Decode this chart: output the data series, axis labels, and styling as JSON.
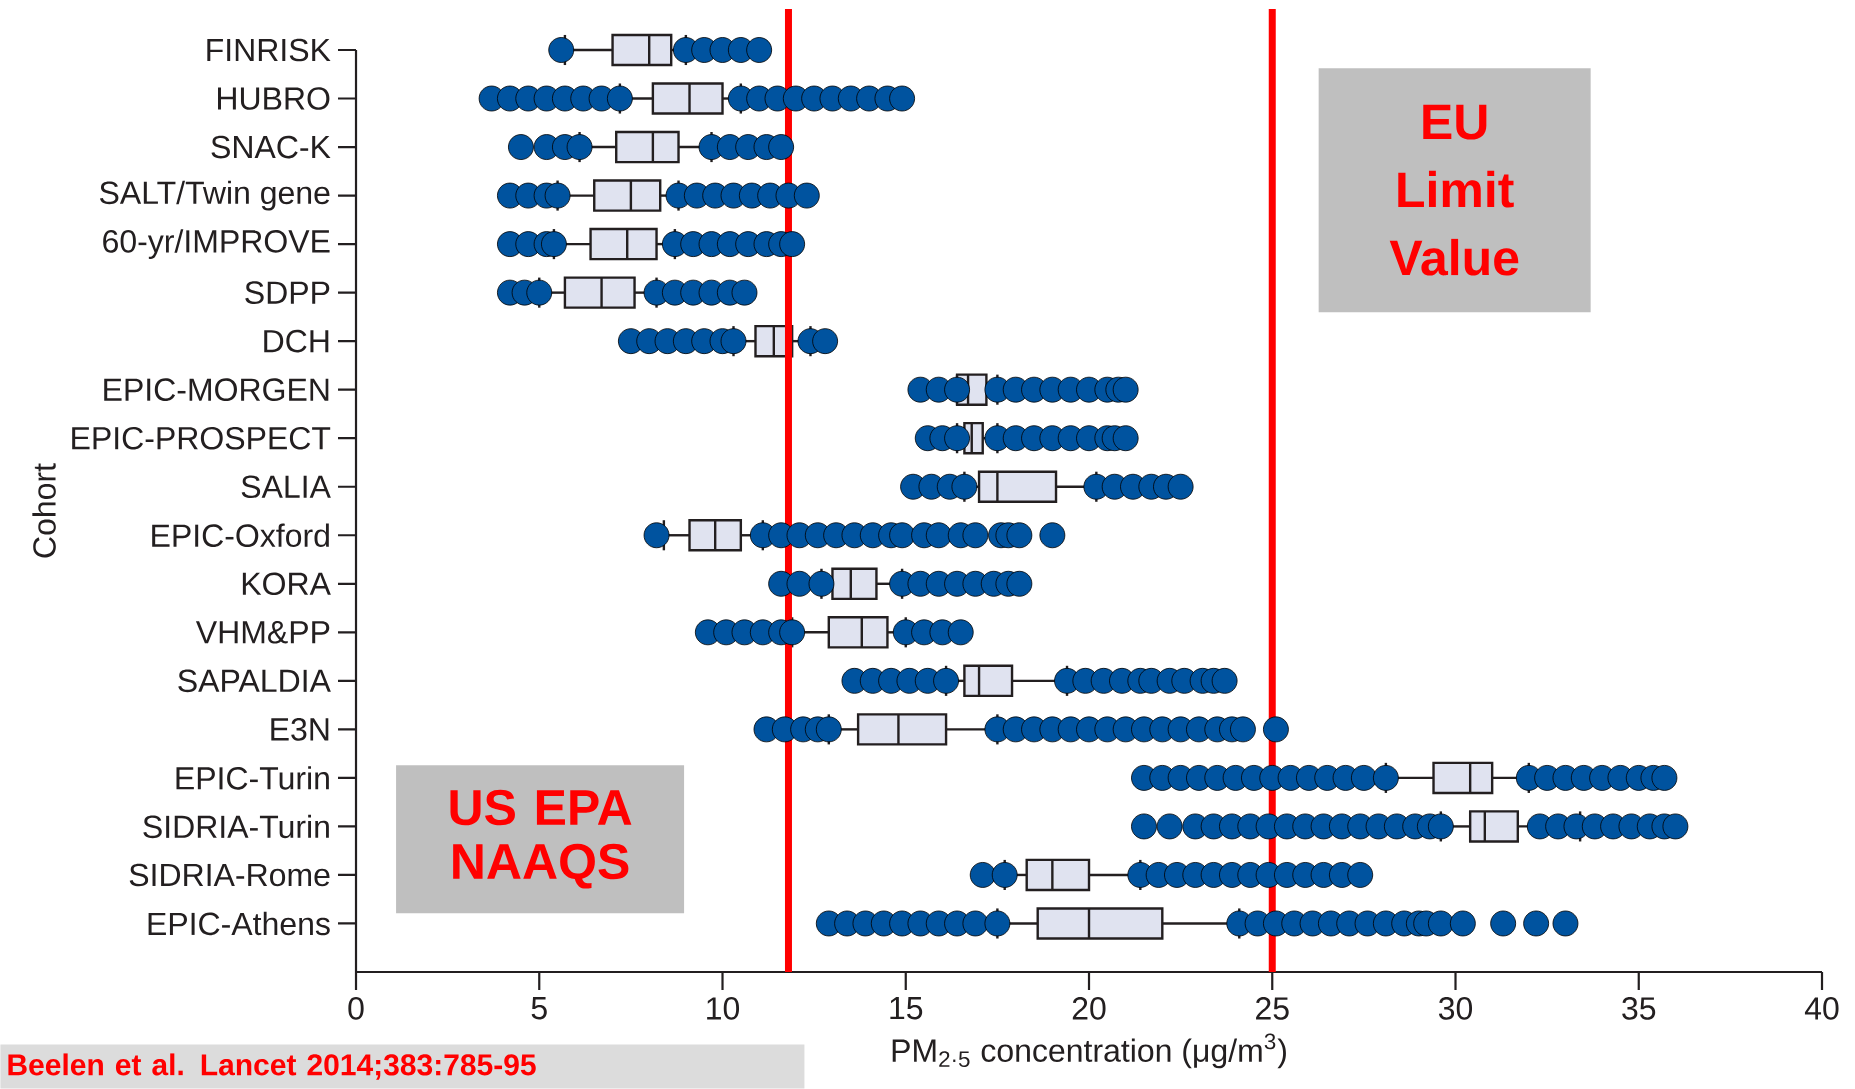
{
  "chart_data": {
    "type": "box",
    "orientation": "horizontal",
    "color": "#e0e3f0",
    "categories": [
      "FINRISK",
      "HUBRO",
      "SNAC-K",
      "SALT/Twin gene",
      "60-yr/IMPROVE",
      "SDPP",
      "DCH",
      "EPIC-MORGEN",
      "EPIC-PROSPECT",
      "SALIA",
      "EPIC-Oxford",
      "KORA",
      "VHM&PP",
      "SAPALDIA",
      "E3N",
      "EPIC-Turin",
      "SIDRIA-Turin",
      "SIDRIA-Rome",
      "EPIC-Athens"
    ],
    "boxes": [
      {
        "low": 5.7,
        "q1": 7.0,
        "median": 8.0,
        "q3": 8.6,
        "high": 9.0,
        "outliers": [
          5.6,
          9.0,
          9.5,
          10.0,
          10.5,
          11.0
        ]
      },
      {
        "low": 7.2,
        "q1": 8.1,
        "median": 9.1,
        "q3": 10.0,
        "high": 10.5,
        "outliers": [
          3.7,
          4.2,
          4.7,
          5.2,
          5.7,
          6.2,
          6.7,
          7.2,
          10.5,
          11.0,
          11.5,
          12.0,
          12.5,
          13.0,
          13.5,
          14.0,
          14.5,
          14.9
        ]
      },
      {
        "low": 6.1,
        "q1": 7.1,
        "median": 8.1,
        "q3": 8.8,
        "high": 9.7,
        "outliers": [
          4.5,
          5.2,
          5.7,
          6.1,
          9.7,
          10.2,
          10.7,
          11.2,
          11.6
        ]
      },
      {
        "low": 5.5,
        "q1": 6.5,
        "median": 7.5,
        "q3": 8.3,
        "high": 8.8,
        "outliers": [
          4.2,
          4.7,
          5.2,
          5.5,
          8.8,
          9.3,
          9.8,
          10.3,
          10.8,
          11.3,
          11.8,
          12.3
        ]
      },
      {
        "low": 5.4,
        "q1": 6.4,
        "median": 7.4,
        "q3": 8.2,
        "high": 8.7,
        "outliers": [
          4.2,
          4.7,
          5.2,
          5.4,
          8.7,
          9.2,
          9.7,
          10.2,
          10.7,
          11.2,
          11.6,
          11.9
        ]
      },
      {
        "low": 5.0,
        "q1": 5.7,
        "median": 6.7,
        "q3": 7.6,
        "high": 8.2,
        "outliers": [
          4.2,
          4.6,
          5.0,
          8.2,
          8.7,
          9.2,
          9.7,
          10.2,
          10.6
        ]
      },
      {
        "low": 10.3,
        "q1": 10.9,
        "median": 11.4,
        "q3": 11.9,
        "high": 12.4,
        "outliers": [
          7.5,
          8.0,
          8.5,
          9.0,
          9.5,
          10.0,
          10.3,
          12.4,
          12.8
        ]
      },
      {
        "low": 16.4,
        "q1": 16.4,
        "median": 16.7,
        "q3": 17.2,
        "high": 17.5,
        "outliers": [
          15.4,
          15.9,
          16.4,
          17.5,
          18.0,
          18.5,
          19.0,
          19.5,
          20.0,
          20.5,
          20.8,
          21.0
        ]
      },
      {
        "low": 16.4,
        "q1": 16.6,
        "median": 16.8,
        "q3": 17.1,
        "high": 17.5,
        "outliers": [
          15.6,
          16.0,
          16.4,
          17.5,
          18.0,
          18.5,
          19.0,
          19.5,
          20.0,
          20.5,
          20.7,
          21.0
        ]
      },
      {
        "low": 16.6,
        "q1": 17.0,
        "median": 17.5,
        "q3": 19.1,
        "high": 20.2,
        "outliers": [
          15.2,
          15.7,
          16.2,
          16.6,
          20.2,
          20.7,
          21.2,
          21.7,
          22.1,
          22.5
        ]
      },
      {
        "low": 8.4,
        "q1": 9.1,
        "median": 9.8,
        "q3": 10.5,
        "high": 11.1,
        "outliers": [
          8.2,
          11.1,
          11.6,
          12.1,
          12.6,
          13.1,
          13.6,
          14.1,
          14.6,
          14.9,
          15.5,
          15.9,
          16.5,
          16.9,
          17.6,
          17.8,
          18.1,
          19.0
        ]
      },
      {
        "low": 12.7,
        "q1": 13.0,
        "median": 13.5,
        "q3": 14.2,
        "high": 14.9,
        "outliers": [
          11.6,
          12.1,
          12.7,
          14.9,
          15.4,
          15.9,
          16.4,
          16.9,
          17.4,
          17.8,
          18.1
        ]
      },
      {
        "low": 11.9,
        "q1": 12.9,
        "median": 13.8,
        "q3": 14.5,
        "high": 15.0,
        "outliers": [
          9.6,
          10.1,
          10.6,
          11.1,
          11.6,
          11.9,
          15.0,
          15.5,
          16.0,
          16.5
        ]
      },
      {
        "low": 16.1,
        "q1": 16.6,
        "median": 17.0,
        "q3": 17.9,
        "high": 19.4,
        "outliers": [
          13.6,
          14.1,
          14.6,
          15.1,
          15.6,
          16.1,
          19.4,
          19.9,
          20.4,
          20.9,
          21.4,
          21.7,
          22.2,
          22.6,
          23.1,
          23.4,
          23.7
        ]
      },
      {
        "low": 12.9,
        "q1": 13.7,
        "median": 14.8,
        "q3": 16.1,
        "high": 17.5,
        "outliers": [
          11.2,
          11.7,
          12.2,
          12.6,
          12.9,
          17.5,
          18.0,
          18.5,
          19.0,
          19.5,
          20.0,
          20.5,
          21.0,
          21.5,
          22.0,
          22.5,
          23.0,
          23.5,
          23.9,
          24.2,
          25.1
        ]
      },
      {
        "low": 28.1,
        "q1": 29.4,
        "median": 30.4,
        "q3": 31.0,
        "high": 32.0,
        "outliers": [
          21.5,
          22.0,
          22.5,
          23.0,
          23.5,
          24.0,
          24.5,
          25.0,
          25.5,
          26.0,
          26.5,
          27.0,
          27.5,
          28.1,
          32.0,
          32.5,
          33.0,
          33.5,
          34.0,
          34.5,
          35.0,
          35.4,
          35.7
        ]
      },
      {
        "low": 29.6,
        "q1": 30.4,
        "median": 30.8,
        "q3": 31.7,
        "high": 33.4,
        "outliers": [
          21.5,
          22.2,
          22.9,
          23.4,
          23.9,
          24.4,
          24.9,
          25.4,
          25.9,
          26.4,
          26.9,
          27.4,
          27.9,
          28.4,
          28.9,
          29.3,
          29.6,
          32.3,
          32.8,
          33.3,
          33.8,
          34.3,
          34.8,
          35.3,
          35.7,
          36.0
        ]
      },
      {
        "low": 17.7,
        "q1": 18.3,
        "median": 19.0,
        "q3": 20.0,
        "high": 21.4,
        "outliers": [
          17.1,
          17.7,
          21.4,
          21.9,
          22.4,
          22.9,
          23.4,
          23.9,
          24.4,
          24.9,
          25.4,
          25.9,
          26.4,
          26.9,
          27.4
        ]
      },
      {
        "low": 17.5,
        "q1": 18.6,
        "median": 20.0,
        "q3": 22.0,
        "high": 24.1,
        "outliers": [
          12.9,
          13.4,
          13.9,
          14.4,
          14.9,
          15.4,
          15.9,
          16.4,
          16.9,
          17.5,
          24.1,
          24.6,
          25.1,
          25.6,
          26.1,
          26.6,
          27.1,
          27.6,
          28.1,
          28.6,
          29.0,
          29.2,
          29.6,
          30.2,
          31.3,
          32.2,
          33.0
        ]
      }
    ],
    "xlim": [
      0,
      40
    ],
    "xticks": [
      0,
      5,
      10,
      15,
      20,
      25,
      30,
      35,
      40
    ],
    "xlabel": "PM$_{2·5}$ concentration (μg/m$^{3}$)",
    "ylabel": "Cohort",
    "ref_lines": [
      {
        "axis": "x",
        "value": 11.8,
        "label": "US EPA NAAQS",
        "color": "#ff0000"
      },
      {
        "axis": "x",
        "value": 25,
        "label": "EU Limit Value",
        "color": "#ff0000"
      }
    ],
    "annotations": [
      "Beelen et al. Lancet 2014;383:785-95"
    ]
  }
}
